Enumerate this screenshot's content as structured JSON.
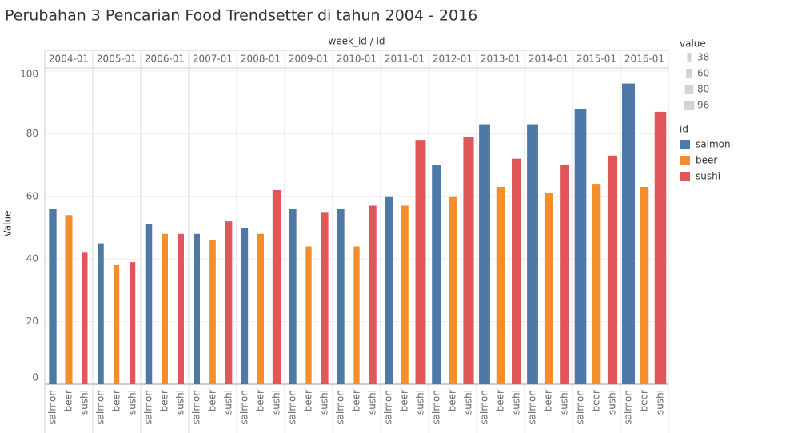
{
  "chart_data": {
    "type": "bar",
    "title": "Perubahan 3 Pencarian Food Trendsetter di tahun 2004 - 2016",
    "header_label": "week_id / id",
    "y_label": "Value",
    "categories": [
      "2004-01",
      "2005-01",
      "2006-01",
      "2007-01",
      "2008-01",
      "2009-01",
      "2010-01",
      "2011-01",
      "2012-01",
      "2013-01",
      "2014-01",
      "2015-01",
      "2016-01"
    ],
    "series": [
      {
        "name": "salmon",
        "color": "#4e79a7",
        "values": [
          56,
          45,
          51,
          48,
          50,
          56,
          56,
          60,
          70,
          83,
          83,
          88,
          96
        ]
      },
      {
        "name": "beer",
        "color": "#f28e2b",
        "values": [
          54,
          38,
          48,
          46,
          48,
          44,
          44,
          57,
          60,
          63,
          61,
          64,
          63
        ]
      },
      {
        "name": "sushi",
        "color": "#e15759",
        "values": [
          42,
          39,
          48,
          52,
          62,
          55,
          57,
          78,
          79,
          72,
          70,
          73,
          87
        ]
      }
    ],
    "ylim": [
      0,
      101
    ],
    "yticks": [
      0,
      20,
      40,
      60,
      80,
      100
    ],
    "grid": true,
    "legend_title": "id",
    "size_legend": {
      "title": "value",
      "values": [
        38,
        60,
        80,
        96
      ]
    }
  }
}
